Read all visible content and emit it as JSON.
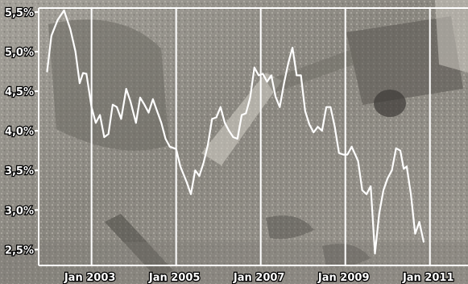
{
  "chart_data": {
    "type": "line",
    "title": "",
    "xlabel": "",
    "ylabel": "",
    "x_tick_labels": [
      "Jan 2003",
      "Jan 2005",
      "Jan 2007",
      "Jan 2009",
      "Jan 2011"
    ],
    "x_tick_values": [
      2003,
      2005,
      2007,
      2009,
      2011
    ],
    "y_tick_labels": [
      "2,5%",
      "3,0%",
      "3,5%",
      "4,0%",
      "4,5%",
      "5,0%",
      "5,5%"
    ],
    "y_tick_values": [
      2.5,
      3.0,
      3.5,
      4.0,
      4.5,
      5.0,
      5.5
    ],
    "xlim": [
      2001.75,
      2011.9
    ],
    "ylim": [
      2.3,
      5.55
    ],
    "grid": "vertical lines at each January",
    "background": "grayscale photograph of construction site with excavator",
    "line_color": "#ffffff",
    "series": [
      {
        "values": [
          [
            2001.95,
            4.75
          ],
          [
            2002.05,
            5.2
          ],
          [
            2002.2,
            5.4
          ],
          [
            2002.35,
            5.52
          ],
          [
            2002.5,
            5.28
          ],
          [
            2002.62,
            5.0
          ],
          [
            2002.72,
            4.6
          ],
          [
            2002.8,
            4.73
          ],
          [
            2002.88,
            4.72
          ],
          [
            2003.0,
            4.3
          ],
          [
            2003.1,
            4.1
          ],
          [
            2003.2,
            4.2
          ],
          [
            2003.3,
            3.92
          ],
          [
            2003.4,
            3.96
          ],
          [
            2003.5,
            4.33
          ],
          [
            2003.6,
            4.3
          ],
          [
            2003.7,
            4.15
          ],
          [
            2003.82,
            4.53
          ],
          [
            2003.92,
            4.37
          ],
          [
            2004.05,
            4.1
          ],
          [
            2004.15,
            4.42
          ],
          [
            2004.25,
            4.33
          ],
          [
            2004.35,
            4.23
          ],
          [
            2004.45,
            4.4
          ],
          [
            2004.55,
            4.25
          ],
          [
            2004.65,
            4.1
          ],
          [
            2004.75,
            3.9
          ],
          [
            2004.85,
            3.8
          ],
          [
            2005.0,
            3.77
          ],
          [
            2005.1,
            3.55
          ],
          [
            2005.25,
            3.35
          ],
          [
            2005.35,
            3.2
          ],
          [
            2005.45,
            3.5
          ],
          [
            2005.55,
            3.43
          ],
          [
            2005.65,
            3.6
          ],
          [
            2005.75,
            3.82
          ],
          [
            2005.85,
            4.15
          ],
          [
            2005.95,
            4.17
          ],
          [
            2006.05,
            4.3
          ],
          [
            2006.15,
            4.1
          ],
          [
            2006.25,
            4.0
          ],
          [
            2006.35,
            3.92
          ],
          [
            2006.45,
            3.9
          ],
          [
            2006.55,
            4.2
          ],
          [
            2006.65,
            4.22
          ],
          [
            2006.75,
            4.42
          ],
          [
            2006.85,
            4.8
          ],
          [
            2006.95,
            4.7
          ],
          [
            2007.05,
            4.72
          ],
          [
            2007.15,
            4.62
          ],
          [
            2007.25,
            4.7
          ],
          [
            2007.35,
            4.43
          ],
          [
            2007.45,
            4.3
          ],
          [
            2007.55,
            4.6
          ],
          [
            2007.65,
            4.85
          ],
          [
            2007.75,
            5.05
          ],
          [
            2007.85,
            4.7
          ],
          [
            2007.95,
            4.7
          ],
          [
            2008.05,
            4.25
          ],
          [
            2008.15,
            4.08
          ],
          [
            2008.25,
            3.98
          ],
          [
            2008.35,
            4.05
          ],
          [
            2008.45,
            4.0
          ],
          [
            2008.55,
            4.3
          ],
          [
            2008.65,
            4.3
          ],
          [
            2008.75,
            4.05
          ],
          [
            2008.85,
            3.72
          ],
          [
            2008.95,
            3.7
          ],
          [
            2009.05,
            3.7
          ],
          [
            2009.15,
            3.8
          ],
          [
            2009.3,
            3.62
          ],
          [
            2009.4,
            3.25
          ],
          [
            2009.5,
            3.2
          ],
          [
            2009.6,
            3.3
          ],
          [
            2009.7,
            2.45
          ],
          [
            2009.8,
            2.95
          ],
          [
            2009.9,
            3.25
          ],
          [
            2010.0,
            3.4
          ],
          [
            2010.1,
            3.5
          ],
          [
            2010.2,
            3.78
          ],
          [
            2010.3,
            3.75
          ],
          [
            2010.38,
            3.52
          ],
          [
            2010.45,
            3.55
          ],
          [
            2010.55,
            3.2
          ],
          [
            2010.65,
            2.7
          ],
          [
            2010.75,
            2.85
          ],
          [
            2010.85,
            2.6
          ]
        ]
      }
    ]
  }
}
